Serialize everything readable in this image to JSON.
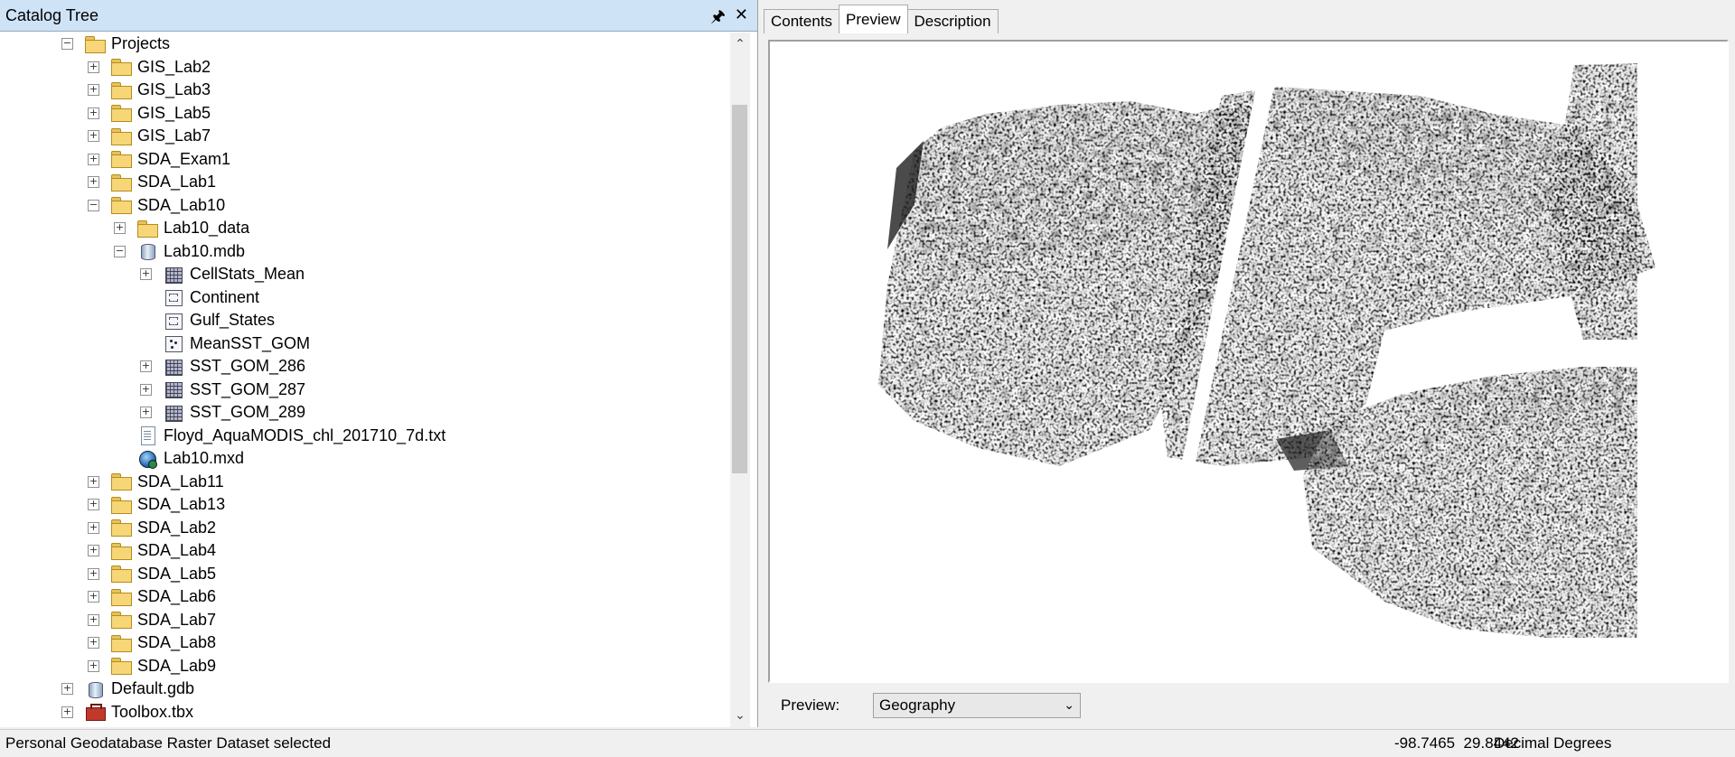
{
  "catalog": {
    "title": "Catalog Tree",
    "pin_icon": "pin-icon",
    "close_icon": "close-icon",
    "items": [
      {
        "label": "Projects",
        "icon": "folder",
        "expand": "minus",
        "indent": 1
      },
      {
        "label": "GIS_Lab2",
        "icon": "folder",
        "expand": "plus",
        "indent": 2
      },
      {
        "label": "GIS_Lab3",
        "icon": "folder",
        "expand": "plus",
        "indent": 2
      },
      {
        "label": "GIS_Lab5",
        "icon": "folder",
        "expand": "plus",
        "indent": 2
      },
      {
        "label": "GIS_Lab7",
        "icon": "folder",
        "expand": "plus",
        "indent": 2
      },
      {
        "label": "SDA_Exam1",
        "icon": "folder",
        "expand": "plus",
        "indent": 2
      },
      {
        "label": "SDA_Lab1",
        "icon": "folder",
        "expand": "plus",
        "indent": 2
      },
      {
        "label": "SDA_Lab10",
        "icon": "folder",
        "expand": "minus",
        "indent": 2
      },
      {
        "label": "Lab10_data",
        "icon": "folder",
        "expand": "plus",
        "indent": 3
      },
      {
        "label": "Lab10.mdb",
        "icon": "db",
        "expand": "minus",
        "indent": 3
      },
      {
        "label": "CellStats_Mean",
        "icon": "raster",
        "expand": "plus",
        "indent": 4
      },
      {
        "label": "Continent",
        "icon": "poly",
        "expand": "none",
        "indent": 4
      },
      {
        "label": "Gulf_States",
        "icon": "poly",
        "expand": "none",
        "indent": 4
      },
      {
        "label": "MeanSST_GOM",
        "icon": "point",
        "expand": "none",
        "indent": 4
      },
      {
        "label": "SST_GOM_286",
        "icon": "raster",
        "expand": "plus",
        "indent": 4
      },
      {
        "label": "SST_GOM_287",
        "icon": "raster",
        "expand": "plus",
        "indent": 4
      },
      {
        "label": "SST_GOM_289",
        "icon": "raster",
        "expand": "plus",
        "indent": 4
      },
      {
        "label": "Floyd_AquaMODIS_chl_201710_7d.txt",
        "icon": "txt",
        "expand": "none",
        "indent": 3
      },
      {
        "label": "Lab10.mxd",
        "icon": "mxd",
        "expand": "none",
        "indent": 3
      },
      {
        "label": "SDA_Lab11",
        "icon": "folder",
        "expand": "plus",
        "indent": 2
      },
      {
        "label": "SDA_Lab13",
        "icon": "folder",
        "expand": "plus",
        "indent": 2
      },
      {
        "label": "SDA_Lab2",
        "icon": "folder",
        "expand": "plus",
        "indent": 2
      },
      {
        "label": "SDA_Lab4",
        "icon": "folder",
        "expand": "plus",
        "indent": 2
      },
      {
        "label": "SDA_Lab5",
        "icon": "folder",
        "expand": "plus",
        "indent": 2
      },
      {
        "label": "SDA_Lab6",
        "icon": "folder",
        "expand": "plus",
        "indent": 2
      },
      {
        "label": "SDA_Lab7",
        "icon": "folder",
        "expand": "plus",
        "indent": 2
      },
      {
        "label": "SDA_Lab8",
        "icon": "folder",
        "expand": "plus",
        "indent": 2
      },
      {
        "label": "SDA_Lab9",
        "icon": "folder",
        "expand": "plus",
        "indent": 2
      },
      {
        "label": "Default.gdb",
        "icon": "db",
        "expand": "plus",
        "indent": 1
      },
      {
        "label": "Toolbox.tbx",
        "icon": "toolbox",
        "expand": "plus",
        "indent": 1
      }
    ]
  },
  "tabs": [
    {
      "label": "Contents",
      "active": false
    },
    {
      "label": "Preview",
      "active": true
    },
    {
      "label": "Description",
      "active": false
    }
  ],
  "preview": {
    "label": "Preview:",
    "selected": "Geography",
    "image": "grayscale-raster-sst-gulf-of-mexico"
  },
  "status": {
    "message": "Personal Geodatabase Raster Dataset selected",
    "coordinates": "-98.7465  29.8442",
    "units": "Decimal Degrees"
  }
}
